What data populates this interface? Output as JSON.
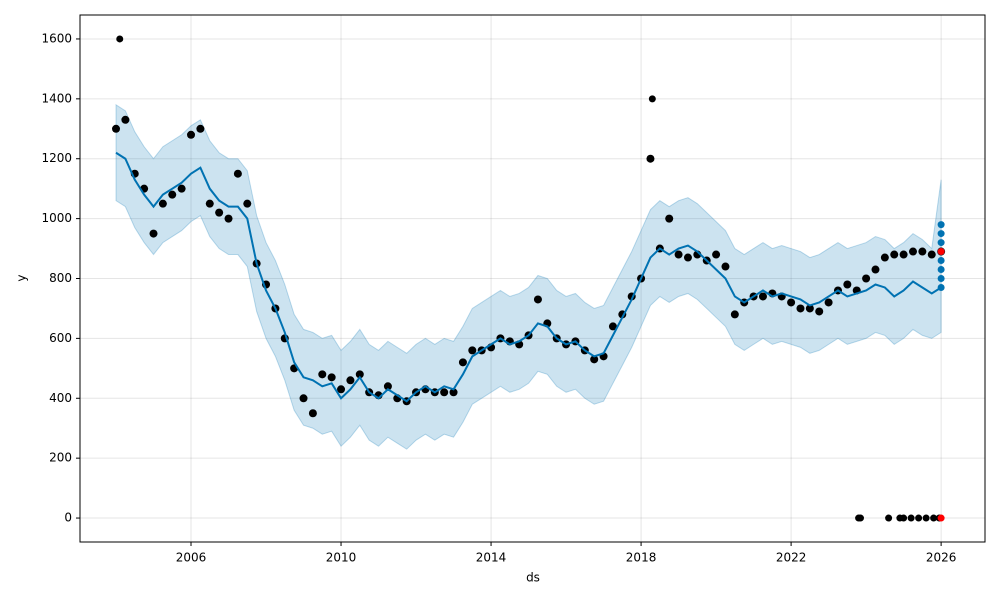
{
  "chart_data": {
    "type": "line",
    "xlabel": "ds",
    "ylabel": "y",
    "xlim": [
      2003.04,
      2027.17
    ],
    "ylim": [
      -80,
      1680
    ],
    "xticks": [
      2006,
      2010,
      2014,
      2018,
      2022,
      2026
    ],
    "yticks": [
      0,
      200,
      400,
      600,
      800,
      1000,
      1200,
      1400,
      1600
    ],
    "grid": true,
    "x": [
      2004,
      2004.25,
      2004.5,
      2004.75,
      2005,
      2005.25,
      2005.5,
      2005.75,
      2006,
      2006.25,
      2006.5,
      2006.75,
      2007,
      2007.25,
      2007.5,
      2007.75,
      2008,
      2008.25,
      2008.5,
      2008.75,
      2009,
      2009.25,
      2009.5,
      2009.75,
      2010,
      2010.25,
      2010.5,
      2010.75,
      2011,
      2011.25,
      2011.5,
      2011.75,
      2012,
      2012.25,
      2012.5,
      2012.75,
      2013,
      2013.25,
      2013.5,
      2013.75,
      2014,
      2014.25,
      2014.5,
      2014.75,
      2015,
      2015.25,
      2015.5,
      2015.75,
      2016,
      2016.25,
      2016.5,
      2016.75,
      2017,
      2017.25,
      2017.5,
      2017.75,
      2018,
      2018.25,
      2018.5,
      2018.75,
      2019,
      2019.25,
      2019.5,
      2019.75,
      2020,
      2020.25,
      2020.5,
      2020.75,
      2021,
      2021.25,
      2021.5,
      2021.75,
      2022,
      2022.25,
      2022.5,
      2022.75,
      2023,
      2023.25,
      2023.5,
      2023.75,
      2024,
      2024.25,
      2024.5,
      2024.75,
      2025,
      2025.25,
      2025.5,
      2025.75,
      2026
    ],
    "band": {
      "color": "#0072B2",
      "opacity": 0.2,
      "lower": [
        1060,
        1040,
        970,
        920,
        880,
        920,
        940,
        960,
        990,
        1010,
        940,
        900,
        880,
        880,
        840,
        690,
        600,
        540,
        460,
        360,
        310,
        300,
        280,
        290,
        240,
        270,
        310,
        260,
        240,
        270,
        250,
        230,
        260,
        280,
        260,
        280,
        270,
        320,
        380,
        400,
        420,
        440,
        420,
        430,
        450,
        490,
        480,
        440,
        420,
        430,
        400,
        380,
        390,
        450,
        510,
        570,
        640,
        710,
        740,
        720,
        740,
        750,
        730,
        700,
        670,
        640,
        580,
        560,
        580,
        600,
        580,
        590,
        580,
        570,
        550,
        560,
        580,
        600,
        580,
        590,
        600,
        620,
        610,
        580,
        600,
        630,
        610,
        600,
        620
      ],
      "upper": [
        1380,
        1360,
        1290,
        1240,
        1200,
        1240,
        1260,
        1280,
        1310,
        1330,
        1260,
        1220,
        1200,
        1200,
        1160,
        1010,
        920,
        860,
        780,
        680,
        630,
        620,
        600,
        610,
        560,
        590,
        630,
        580,
        560,
        590,
        570,
        550,
        580,
        600,
        580,
        600,
        590,
        640,
        700,
        720,
        740,
        760,
        740,
        750,
        770,
        810,
        800,
        760,
        740,
        750,
        720,
        700,
        710,
        770,
        830,
        890,
        960,
        1030,
        1060,
        1040,
        1060,
        1070,
        1050,
        1020,
        990,
        960,
        900,
        880,
        900,
        920,
        900,
        910,
        900,
        890,
        870,
        880,
        900,
        920,
        900,
        910,
        920,
        940,
        930,
        900,
        920,
        950,
        930,
        900,
        1130
      ]
    },
    "series": [
      {
        "color": "#0072B2",
        "values": [
          1220,
          1200,
          1130,
          1080,
          1040,
          1080,
          1100,
          1120,
          1150,
          1170,
          1100,
          1060,
          1040,
          1040,
          1000,
          850,
          760,
          700,
          620,
          520,
          470,
          460,
          440,
          450,
          400,
          430,
          470,
          420,
          400,
          430,
          410,
          390,
          420,
          440,
          420,
          440,
          430,
          480,
          540,
          560,
          580,
          600,
          580,
          590,
          610,
          650,
          640,
          600,
          580,
          590,
          560,
          540,
          550,
          610,
          670,
          730,
          800,
          870,
          900,
          880,
          900,
          910,
          890,
          860,
          830,
          800,
          740,
          720,
          740,
          760,
          740,
          750,
          740,
          730,
          710,
          720,
          740,
          760,
          740,
          750,
          760,
          780,
          770,
          740,
          760,
          790,
          770,
          750,
          770
        ]
      }
    ],
    "points": [
      {
        "color": "#000000",
        "values": [
          1300,
          1330,
          1150,
          1100,
          950,
          1050,
          1080,
          1100,
          1280,
          1300,
          1050,
          1020,
          1000,
          1150,
          1050,
          850,
          780,
          700,
          600,
          500,
          400,
          350,
          480,
          470,
          430,
          460,
          480,
          420,
          410,
          440,
          400,
          390,
          420,
          430,
          420,
          420,
          420,
          520,
          560,
          560,
          570,
          600,
          590,
          580,
          610,
          730,
          650,
          600,
          580,
          590,
          560,
          530,
          540,
          640,
          680,
          740,
          800,
          1200,
          900,
          1000,
          880,
          870,
          880,
          860,
          880,
          840,
          680,
          720,
          740,
          740,
          750,
          740,
          720,
          700,
          700,
          690,
          720,
          760,
          780,
          760,
          800,
          830,
          870,
          880,
          880,
          890,
          890,
          880,
          890
        ]
      },
      {
        "color": "#000000",
        "x": [
          2004.1,
          2018.3,
          2023.8,
          2023.85,
          2024.6,
          2024.9,
          2025.0,
          2025.2,
          2025.4,
          2025.6,
          2025.8,
          2025.95
        ],
        "values": [
          1600,
          1400,
          0,
          0,
          0,
          0,
          0,
          0,
          0,
          0,
          0,
          0
        ]
      },
      {
        "color": "#0072B2",
        "x": [
          2026,
          2026,
          2026,
          2026,
          2026,
          2026,
          2026,
          2026
        ],
        "values": [
          770,
          800,
          830,
          860,
          890,
          920,
          950,
          980
        ]
      },
      {
        "color": "#ff0000",
        "x": [
          2026,
          2026
        ],
        "values": [
          890,
          0
        ]
      }
    ]
  }
}
